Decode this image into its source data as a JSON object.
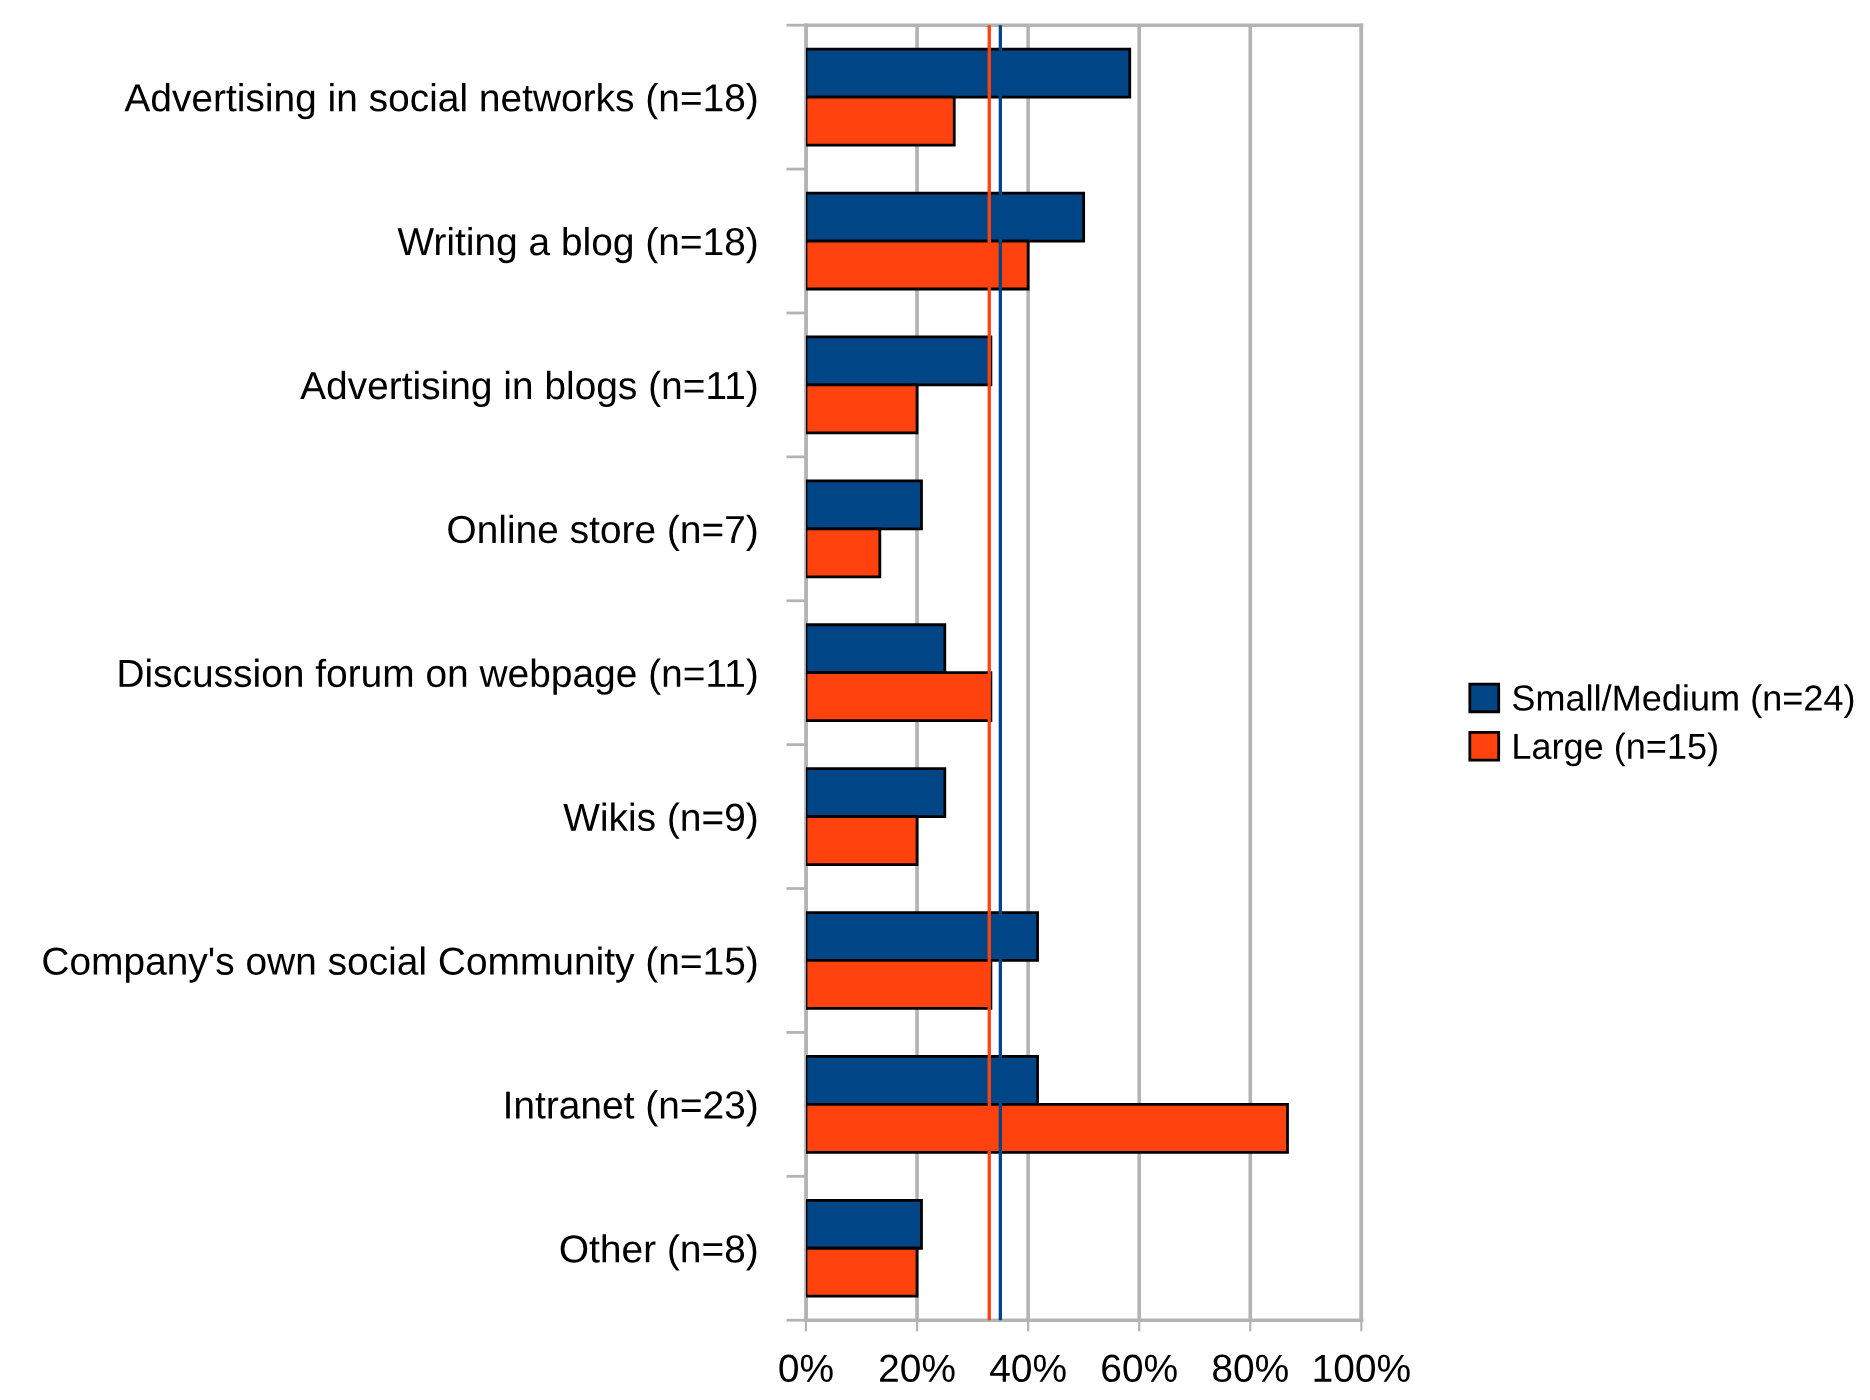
{
  "chart_data": {
    "type": "bar",
    "orientation": "horizontal",
    "categories": [
      "Advertising in social networks (n=18)",
      "Writing a blog (n=18)",
      "Advertising in blogs (n=11)",
      "Online store (n=7)",
      "Discussion forum on webpage (n=11)",
      "Wikis (n=9)",
      "Company's own social Community (n=15)",
      "Intranet (n=23)",
      "Other (n=8)"
    ],
    "series": [
      {
        "name": "Small/Medium (n=24)",
        "color": "#004586",
        "values": [
          58.3,
          50.0,
          33.3,
          20.8,
          25.0,
          25.0,
          41.7,
          41.7,
          20.8
        ]
      },
      {
        "name": "Large (n=15)",
        "color": "#ff420e",
        "values": [
          26.7,
          40.0,
          20.0,
          13.3,
          33.3,
          20.0,
          33.3,
          86.7,
          20.0
        ]
      }
    ],
    "xlim": [
      0,
      100
    ],
    "xticks": [
      {
        "value": 0,
        "label": "0%"
      },
      {
        "value": 20,
        "label": "20%"
      },
      {
        "value": 40,
        "label": "40%"
      },
      {
        "value": 60,
        "label": "60%"
      },
      {
        "value": 80,
        "label": "80%"
      },
      {
        "value": 100,
        "label": "100%"
      }
    ],
    "grid": "x",
    "legend": "right",
    "ref_lines": [
      {
        "axis": "x",
        "value": 33,
        "color": "#ff420e"
      },
      {
        "axis": "x",
        "value": 35,
        "color": "#004586"
      }
    ]
  }
}
